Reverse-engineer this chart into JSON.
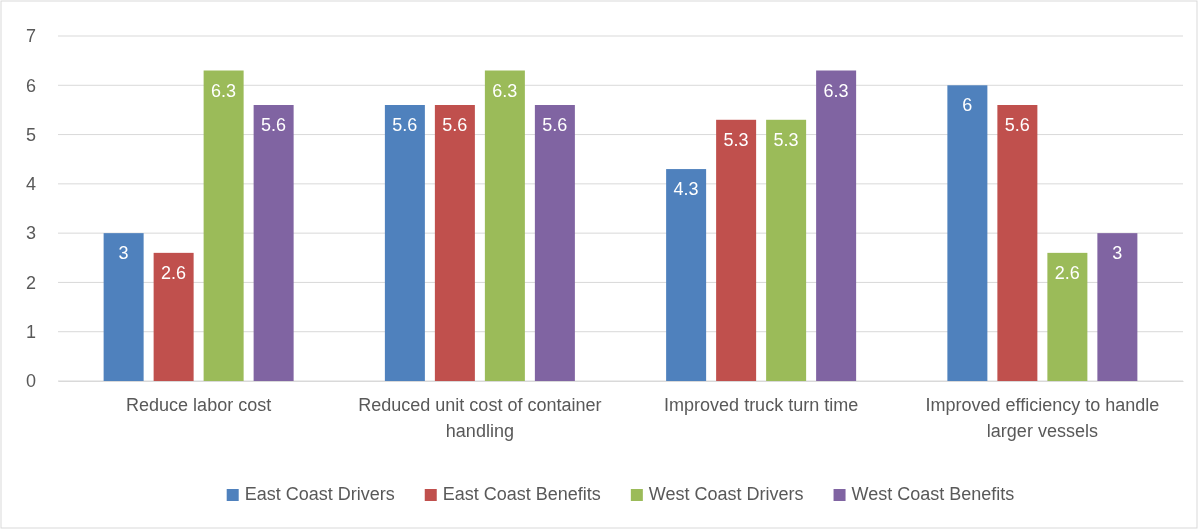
{
  "chart_data": {
    "type": "bar",
    "categories": [
      "Reduce labor cost",
      "Reduced unit cost of container handling",
      "Improved truck turn time",
      "Improved efficiency to handle larger vessels"
    ],
    "series": [
      {
        "name": "East Coast Drivers",
        "color": "#4f81bd",
        "values": [
          3,
          5.6,
          4.3,
          6
        ]
      },
      {
        "name": "East Coast Benefits",
        "color": "#c0504d",
        "values": [
          2.6,
          5.6,
          5.3,
          5.6
        ]
      },
      {
        "name": "West Coast Drivers",
        "color": "#9bbb59",
        "values": [
          6.3,
          6.3,
          5.3,
          2.6
        ]
      },
      {
        "name": "West Coast Benefits",
        "color": "#8064a2",
        "values": [
          5.6,
          5.6,
          6.3,
          3
        ]
      }
    ],
    "ylim": [
      0,
      7
    ],
    "yticks": [
      0,
      1,
      2,
      3,
      4,
      5,
      6,
      7
    ],
    "grid": "y",
    "legend": "bottom",
    "data_labels": true
  }
}
